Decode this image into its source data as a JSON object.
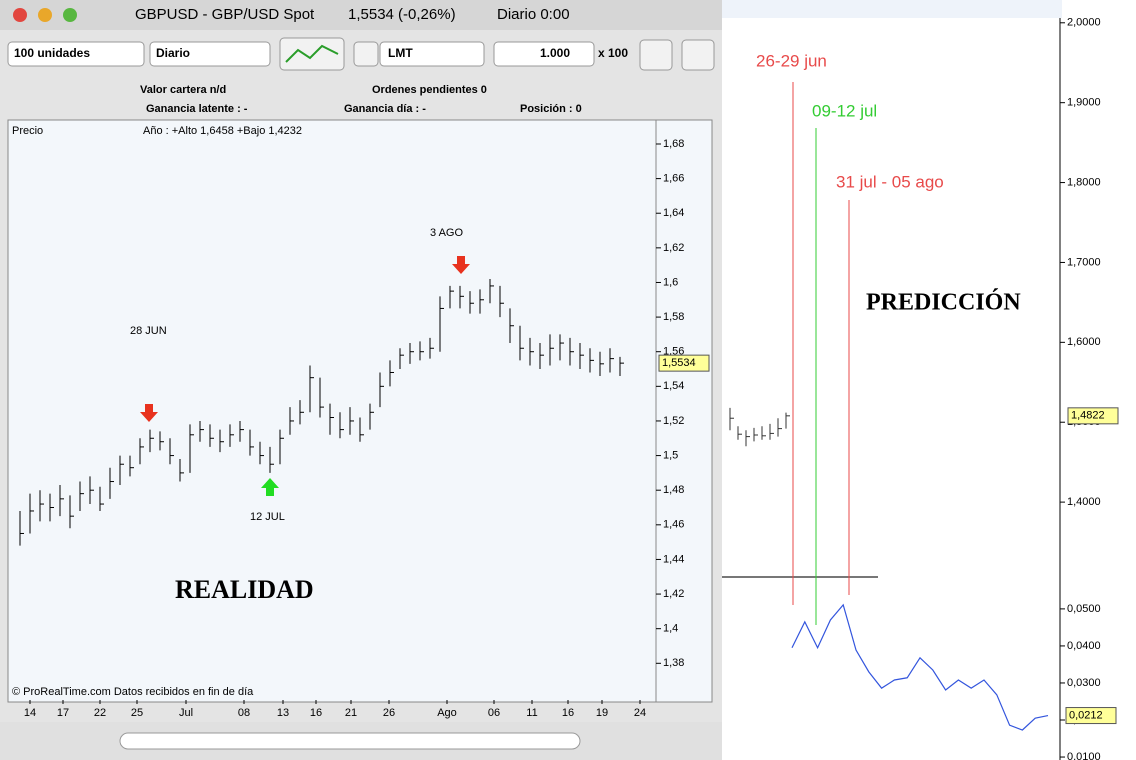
{
  "window": {
    "title": "GBPUSD - GBP/USD Spot",
    "quote": "1,5534 (-0,26%)",
    "period": "Diario 0:00",
    "toolbar": {
      "quantity": "100 unidades",
      "timeframe": "Diario",
      "order_type": "LMT",
      "amount": "1.000",
      "multiplier": "x 100"
    },
    "info": {
      "portfolio": "Valor cartera n/d",
      "pending": "Ordenes pendientes 0",
      "latent": "Ganancia latente : -",
      "day_gain": "Ganancia día : -",
      "position": "Posición : 0"
    }
  },
  "chart_data": [
    {
      "type": "ohlc",
      "legend_label": "Precio",
      "subtitle": "Año : +Alto 1,6458 +Bajo 1,4232",
      "footer": "© ProRealTime.com   Datos recibidos en fin de día",
      "annotations": [
        "28 JUN",
        "3 AGO",
        "12 JUL",
        "REALIDAD"
      ],
      "price_label": "1,5534",
      "color": "#000000",
      "close": [
        1.455,
        1.468,
        1.472,
        1.47,
        1.475,
        1.465,
        1.478,
        1.48,
        1.472,
        1.485,
        1.495,
        1.493,
        1.505,
        1.51,
        1.508,
        1.5,
        1.49,
        1.512,
        1.515,
        1.51,
        1.508,
        1.512,
        1.515,
        1.505,
        1.5,
        1.495,
        1.51,
        1.52,
        1.525,
        1.545,
        1.528,
        1.522,
        1.515,
        1.52,
        1.512,
        1.525,
        1.54,
        1.548,
        1.558,
        1.56,
        1.56,
        1.562,
        1.585,
        1.595,
        1.592,
        1.588,
        1.59,
        1.598,
        1.588,
        1.575,
        1.562,
        1.56,
        1.558,
        1.562,
        1.565,
        1.56,
        1.558,
        1.555,
        1.553,
        1.556,
        1.5534
      ],
      "high": [
        1.468,
        1.478,
        1.48,
        1.478,
        1.483,
        1.477,
        1.485,
        1.488,
        1.482,
        1.493,
        1.5,
        1.5,
        1.51,
        1.515,
        1.514,
        1.51,
        1.498,
        1.518,
        1.52,
        1.518,
        1.515,
        1.518,
        1.52,
        1.515,
        1.508,
        1.505,
        1.515,
        1.528,
        1.532,
        1.552,
        1.545,
        1.53,
        1.525,
        1.528,
        1.522,
        1.53,
        1.548,
        1.555,
        1.562,
        1.565,
        1.566,
        1.568,
        1.592,
        1.598,
        1.598,
        1.595,
        1.596,
        1.602,
        1.598,
        1.585,
        1.575,
        1.568,
        1.565,
        1.57,
        1.57,
        1.568,
        1.565,
        1.562,
        1.56,
        1.562,
        1.557
      ],
      "low": [
        1.448,
        1.455,
        1.462,
        1.462,
        1.465,
        1.458,
        1.468,
        1.472,
        1.468,
        1.475,
        1.483,
        1.488,
        1.495,
        1.502,
        1.503,
        1.495,
        1.485,
        1.49,
        1.508,
        1.505,
        1.502,
        1.505,
        1.508,
        1.5,
        1.495,
        1.49,
        1.495,
        1.512,
        1.518,
        1.525,
        1.522,
        1.512,
        1.51,
        1.512,
        1.508,
        1.515,
        1.528,
        1.54,
        1.55,
        1.553,
        1.555,
        1.556,
        1.56,
        1.585,
        1.585,
        1.582,
        1.582,
        1.588,
        1.58,
        1.565,
        1.555,
        1.552,
        1.55,
        1.552,
        1.555,
        1.552,
        1.55,
        1.548,
        1.546,
        1.548,
        1.546
      ],
      "xlim": [
        -0.6,
        63.6
      ],
      "xticks": [
        {
          "value": 1.0,
          "label": "14"
        },
        {
          "value": 4.3,
          "label": "17"
        },
        {
          "value": 8.0,
          "label": "22"
        },
        {
          "value": 11.7,
          "label": "25"
        },
        {
          "value": 16.6,
          "label": "Jul"
        },
        {
          "value": 22.4,
          "label": "08"
        },
        {
          "value": 26.3,
          "label": "13"
        },
        {
          "value": 29.6,
          "label": "16"
        },
        {
          "value": 33.1,
          "label": "21"
        },
        {
          "value": 36.9,
          "label": "26"
        },
        {
          "value": 42.7,
          "label": "Ago"
        },
        {
          "value": 47.4,
          "label": "06"
        },
        {
          "value": 51.2,
          "label": "11"
        },
        {
          "value": 54.8,
          "label": "16"
        },
        {
          "value": 58.2,
          "label": "19"
        },
        {
          "value": 62.0,
          "label": "24"
        }
      ],
      "ylim": [
        1.3588,
        1.6927
      ],
      "yticks": [
        {
          "value": 1.68,
          "label": "1,68"
        },
        {
          "value": 1.66,
          "label": "1,66"
        },
        {
          "value": 1.64,
          "label": "1,64"
        },
        {
          "value": 1.62,
          "label": "1,62"
        },
        {
          "value": 1.6,
          "label": "1,6"
        },
        {
          "value": 1.58,
          "label": "1,58"
        },
        {
          "value": 1.56,
          "label": "1,56"
        },
        {
          "value": 1.54,
          "label": "1,54"
        },
        {
          "value": 1.52,
          "label": "1,52"
        },
        {
          "value": 1.5,
          "label": "1,5"
        },
        {
          "value": 1.48,
          "label": "1,48"
        },
        {
          "value": 1.46,
          "label": "1,46"
        },
        {
          "value": 1.44,
          "label": "1,44"
        },
        {
          "value": 1.42,
          "label": "1,42"
        },
        {
          "value": 1.4,
          "label": "1,4"
        },
        {
          "value": 1.38,
          "label": "1,38"
        }
      ]
    },
    {
      "type": "ohlc",
      "annotations": [
        "26-29 jun",
        "09-12 jul",
        "31 jul - 05 ago",
        "PREDICCIÓN"
      ],
      "price_label": "1,4822",
      "color": "#333333",
      "close": [
        1.505,
        1.485,
        1.482,
        1.484,
        1.483,
        1.486,
        1.492,
        1.508
      ],
      "high": [
        1.518,
        1.495,
        1.49,
        1.493,
        1.495,
        1.498,
        1.505,
        1.512
      ],
      "low": [
        1.49,
        1.478,
        1.47,
        1.476,
        1.478,
        1.478,
        1.482,
        1.492
      ],
      "xlim": [
        -1,
        41.25
      ],
      "ylim": [
        1.305,
        2.006
      ],
      "yticks": [
        {
          "value": 2.0,
          "label": "2,0000"
        },
        {
          "value": 1.9,
          "label": "1,9000"
        },
        {
          "value": 1.8,
          "label": "1,8000"
        },
        {
          "value": 1.7,
          "label": "1,7000"
        },
        {
          "value": 1.6,
          "label": "1,6000"
        },
        {
          "value": 1.5,
          "label": "1,5000"
        },
        {
          "value": 1.4,
          "label": "1,4000"
        }
      ]
    },
    {
      "type": "line",
      "price_label": "0,0212",
      "color": "#3355dd",
      "values": [
        0.0395,
        0.0465,
        0.0395,
        0.047,
        0.0511,
        0.0389,
        0.033,
        0.0286,
        0.0308,
        0.0314,
        0.0368,
        0.0335,
        0.0281,
        0.0308,
        0.0286,
        0.0308,
        0.0268,
        0.0186,
        0.0173,
        0.0205,
        0.0212
      ],
      "ylim": [
        0.0092,
        0.0578
      ],
      "yticks": [
        {
          "value": 0.05,
          "label": "0,0500"
        },
        {
          "value": 0.04,
          "label": "0,0400"
        },
        {
          "value": 0.03,
          "label": "0,0300"
        },
        {
          "value": 0.02,
          "label": "0,0200"
        },
        {
          "value": 0.01,
          "label": "0,0100"
        }
      ]
    }
  ]
}
